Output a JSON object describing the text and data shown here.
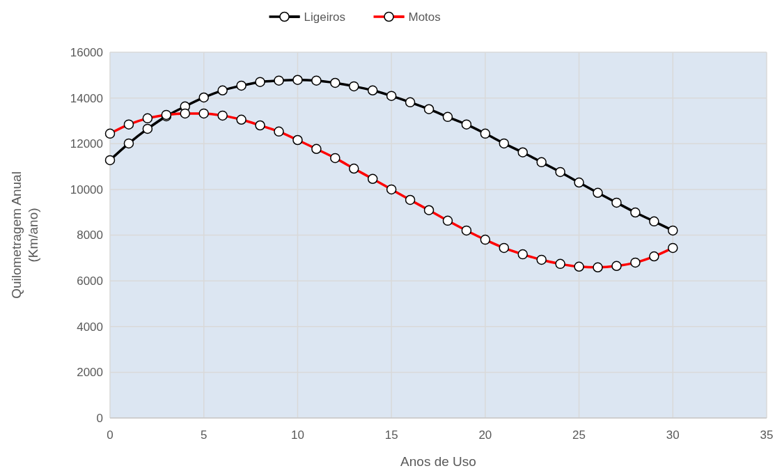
{
  "chart_data": {
    "type": "line",
    "xlabel": "Anos de Uso",
    "ylabel": "Quilometragem Anual\n(Km/ano)",
    "x": [
      0,
      1,
      2,
      3,
      4,
      5,
      6,
      7,
      8,
      9,
      10,
      11,
      12,
      13,
      14,
      15,
      16,
      17,
      18,
      19,
      20,
      21,
      22,
      23,
      24,
      25,
      26,
      27,
      28,
      29,
      30
    ],
    "series": [
      {
        "name": "Ligeiros",
        "color": "#000000",
        "values": [
          11280,
          12010,
          12650,
          13200,
          13630,
          14020,
          14330,
          14540,
          14700,
          14760,
          14790,
          14760,
          14660,
          14510,
          14330,
          14090,
          13810,
          13510,
          13170,
          12840,
          12440,
          12010,
          11620,
          11190,
          10760,
          10300,
          9850,
          9420,
          8990,
          8600,
          8200
        ]
      },
      {
        "name": "Motos",
        "color": "#ff0000",
        "values": [
          12440,
          12840,
          13110,
          13260,
          13320,
          13320,
          13230,
          13050,
          12800,
          12530,
          12160,
          11770,
          11370,
          10910,
          10460,
          10000,
          9540,
          9090,
          8630,
          8200,
          7800,
          7440,
          7160,
          6920,
          6740,
          6620,
          6590,
          6650,
          6800,
          7070,
          7440
        ]
      }
    ],
    "xlim": [
      0,
      35
    ],
    "xticks": [
      0,
      5,
      10,
      15,
      20,
      25,
      30,
      35
    ],
    "ylim": [
      0,
      16000
    ],
    "yticks": [
      0,
      2000,
      4000,
      6000,
      8000,
      10000,
      12000,
      14000,
      16000
    ],
    "grid": true,
    "legend": "top",
    "marker": "circle",
    "line_style": "solid"
  }
}
